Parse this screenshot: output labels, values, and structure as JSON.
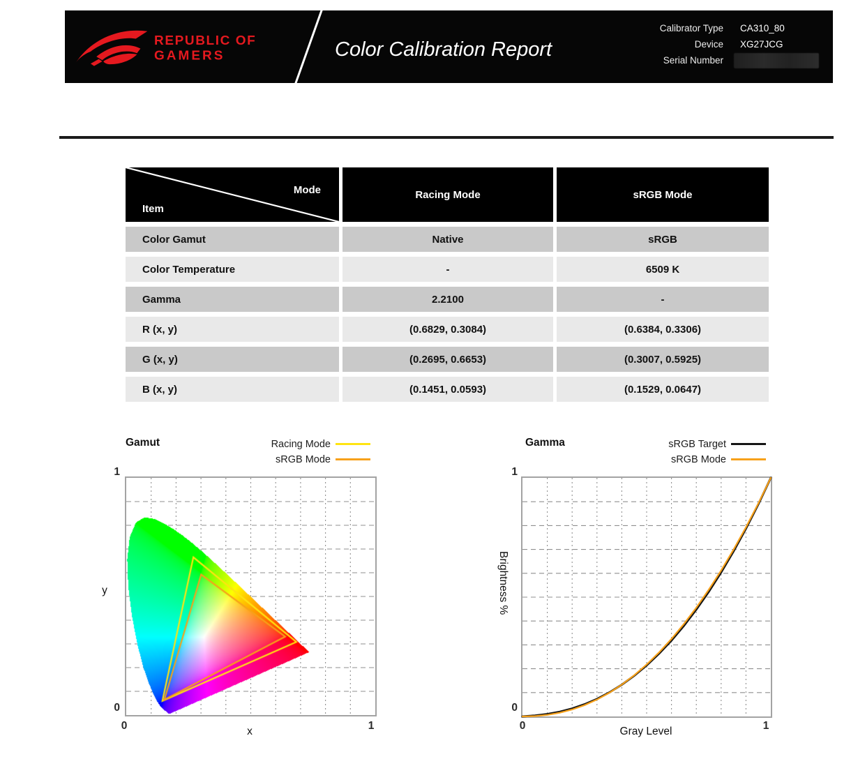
{
  "header": {
    "brand": {
      "line1": "REPUBLIC OF",
      "line2": "GAMERS",
      "color": "#e5191f"
    },
    "title": "Color Calibration Report",
    "info_rows": [
      {
        "label": "Calibrator Type",
        "value": "CA310_80"
      },
      {
        "label": "Device",
        "value": "XG27JCG"
      },
      {
        "label": "Serial Number",
        "value": "",
        "redacted": true
      }
    ]
  },
  "table": {
    "corner": {
      "mode_label": "Mode",
      "item_label": "Item"
    },
    "columns": [
      "Racing Mode",
      "sRGB Mode"
    ],
    "rows": [
      {
        "item": "Color Gamut",
        "racing": "Native",
        "srgb": "sRGB"
      },
      {
        "item": "Color Temperature",
        "racing": "-",
        "srgb": "6509 K"
      },
      {
        "item": "Gamma",
        "racing": "2.2100",
        "srgb": "-"
      },
      {
        "item": "R (x, y)",
        "racing": "(0.6829, 0.3084)",
        "srgb": "(0.6384, 0.3306)"
      },
      {
        "item": "G (x, y)",
        "racing": "(0.2695, 0.6653)",
        "srgb": "(0.3007, 0.5925)"
      },
      {
        "item": "B (x, y)",
        "racing": "(0.1451, 0.0593)",
        "srgb": "(0.1529, 0.0647)"
      }
    ]
  },
  "chart_data": [
    {
      "id": "gamut",
      "type": "line",
      "diagram": "CIE 1931 xy chromaticity with gamut triangles",
      "title": "Gamut",
      "xlabel": "x",
      "ylabel": "y",
      "xlim": [
        0,
        1
      ],
      "ylim": [
        0,
        1
      ],
      "grid": true,
      "xticks": [
        "0",
        "1"
      ],
      "yticks": [
        "0",
        "1"
      ],
      "legend": [
        {
          "label": "Racing Mode",
          "color": "#ffe412"
        },
        {
          "label": "sRGB Mode",
          "color": "#f7a11a"
        }
      ],
      "series": [
        {
          "name": "Racing Mode",
          "color": "#ffe412",
          "closed": true,
          "points": [
            [
              0.6829,
              0.3084
            ],
            [
              0.2695,
              0.6653
            ],
            [
              0.1451,
              0.0593
            ]
          ]
        },
        {
          "name": "sRGB Mode",
          "color": "#f7a11a",
          "closed": true,
          "points": [
            [
              0.6384,
              0.3306
            ],
            [
              0.3007,
              0.5925
            ],
            [
              0.1529,
              0.0647
            ]
          ]
        }
      ]
    },
    {
      "id": "gamma",
      "type": "line",
      "title": "Gamma",
      "xlabel": "Gray Level",
      "ylabel": "Brightness %",
      "xlim": [
        0,
        1
      ],
      "ylim": [
        0,
        1
      ],
      "grid": true,
      "xticks": [
        "0",
        "1"
      ],
      "yticks": [
        "0",
        "1"
      ],
      "legend": [
        {
          "label": "sRGB Target",
          "color": "#161616"
        },
        {
          "label": "sRGB Mode",
          "color": "#f7a11a"
        }
      ],
      "x": [
        0,
        0.05,
        0.1,
        0.15,
        0.2,
        0.25,
        0.3,
        0.35,
        0.4,
        0.45,
        0.5,
        0.55,
        0.6,
        0.65,
        0.7,
        0.75,
        0.8,
        0.85,
        0.9,
        0.95,
        1
      ],
      "series": [
        {
          "name": "sRGB Target",
          "color": "#161616",
          "values": [
            0,
            0.0039,
            0.01,
            0.0196,
            0.0331,
            0.0509,
            0.0732,
            0.1005,
            0.1329,
            0.1707,
            0.214,
            0.2632,
            0.3185,
            0.3801,
            0.448,
            0.5225,
            0.6039,
            0.6921,
            0.7874,
            0.89,
            1
          ]
        },
        {
          "name": "sRGB Mode",
          "color": "#f7a11a",
          "values": [
            0,
            0.0014,
            0.0063,
            0.0154,
            0.029,
            0.0474,
            0.0707,
            0.0993,
            0.1332,
            0.1726,
            0.2176,
            0.2684,
            0.325,
            0.3876,
            0.4562,
            0.531,
            0.6121,
            0.6994,
            0.7931,
            0.8933,
            1
          ]
        }
      ]
    }
  ]
}
